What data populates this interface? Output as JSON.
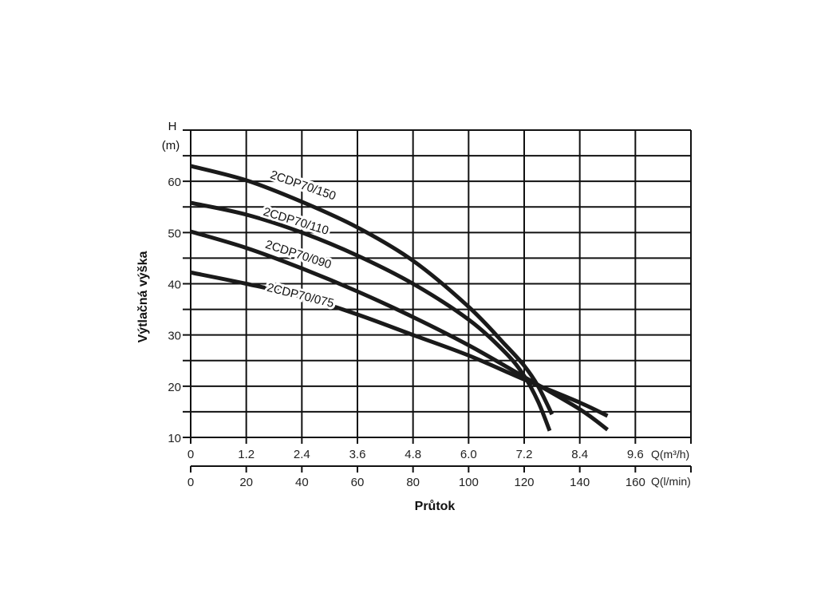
{
  "chart_data": {
    "type": "line",
    "title": "",
    "ylabel": "Výtlačná výška",
    "y_unit_top": "H",
    "y_unit_bottom": "(m)",
    "xlabel": "Průtok",
    "x_unit_primary": "Q(m³/h)",
    "x_unit_secondary": "Q(l/min)",
    "xlim": [
      0,
      10.8
    ],
    "ylim": [
      10,
      70
    ],
    "grid": true,
    "x_ticks": [
      "0",
      "1.2",
      "2.4",
      "3.6",
      "4.8",
      "6.0",
      "7.2",
      "8.4",
      "9.6"
    ],
    "x_tick_values": [
      0,
      1.2,
      2.4,
      3.6,
      4.8,
      6.0,
      7.2,
      8.4,
      9.6
    ],
    "x2_ticks": [
      "0",
      "20",
      "40",
      "60",
      "80",
      "100",
      "120",
      "140",
      "160"
    ],
    "y_ticks": [
      "10",
      "20",
      "30",
      "40",
      "50",
      "60"
    ],
    "y_tick_values": [
      10,
      20,
      30,
      40,
      50,
      60
    ],
    "series": [
      {
        "name": "2CDP70/150",
        "x": [
          0,
          1.2,
          2.4,
          3.6,
          4.8,
          6.0,
          6.8,
          7.2,
          7.5,
          7.8
        ],
        "y": [
          63,
          60.2,
          56,
          51,
          44.5,
          35.5,
          28,
          24,
          20,
          14.5
        ]
      },
      {
        "name": "2CDP70/110",
        "x": [
          0,
          1.2,
          2.4,
          3.6,
          4.8,
          6.0,
          6.8,
          7.2,
          7.5,
          7.75
        ],
        "y": [
          55.8,
          53.5,
          50,
          45.5,
          40,
          33,
          26.5,
          22,
          17,
          11.3
        ]
      },
      {
        "name": "2CDP70/090",
        "x": [
          0,
          1.2,
          2.4,
          3.6,
          4.8,
          6.0,
          7.2,
          8.4,
          9.0
        ],
        "y": [
          50.2,
          47,
          43,
          38.5,
          33.5,
          28,
          21.8,
          15.5,
          11.5
        ]
      },
      {
        "name": "2CDP70/075",
        "x": [
          0,
          1.2,
          2.4,
          3.6,
          4.8,
          6.0,
          7.2,
          8.4,
          9.0
        ],
        "y": [
          42.2,
          40,
          37.5,
          34,
          30,
          26,
          21.3,
          16.8,
          14.2
        ]
      }
    ]
  }
}
